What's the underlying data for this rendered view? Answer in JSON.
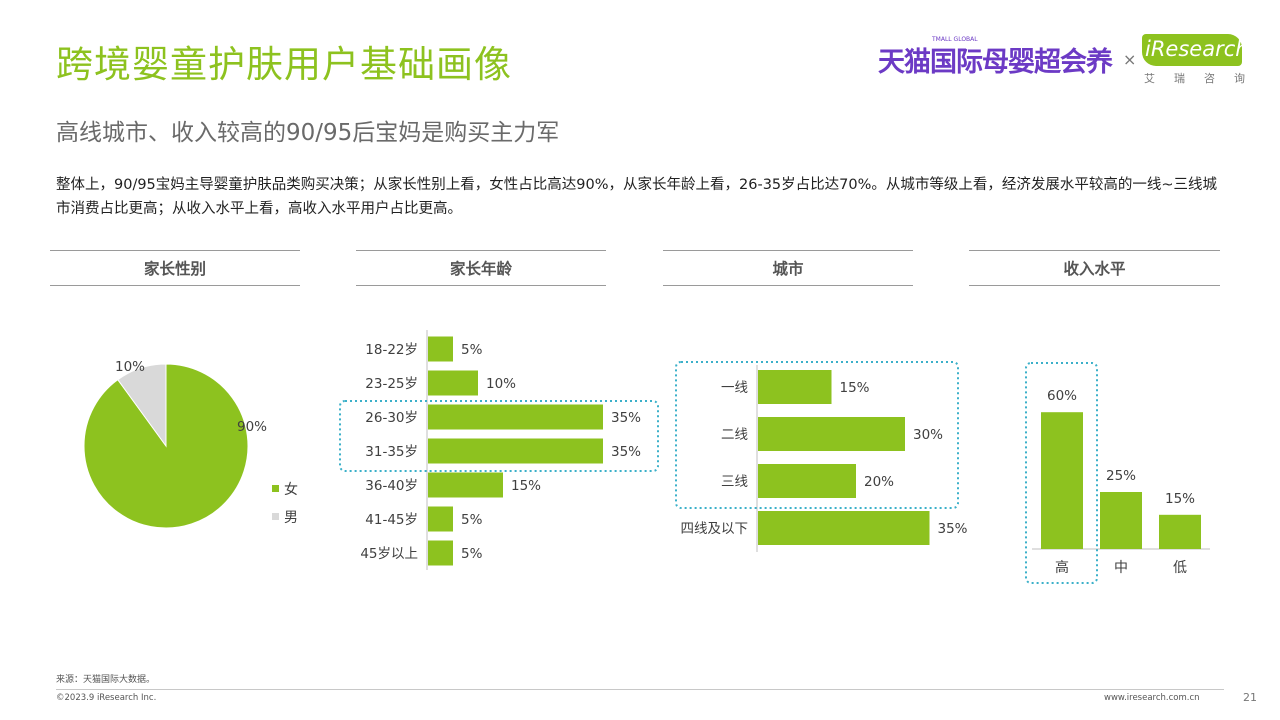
{
  "header": {
    "title": "跨境婴童护肤用户基础画像",
    "subtitle": "高线城市、收入较高的90/95后宝妈是购买主力军",
    "summary": "整体上，90/95宝妈主导婴童护肤品类购买决策；从家长性别上看，女性占比高达90%，从家长年龄上看，26-35岁占比达70%。从城市等级上看，经济发展水平较高的一线~三线城市消费占比更高；从收入水平上看，高收入水平用户占比更高。"
  },
  "logos": {
    "tmall_text": "天猫国际母婴超会养",
    "tmall_small": "TMALL GLOBAL",
    "x_sign": "×",
    "ir_text": "iResearch",
    "ir_cn": "艾瑞咨询"
  },
  "section_headers": [
    "家长性别",
    "家长年龄",
    "城市",
    "收入水平"
  ],
  "colors": {
    "accent": "#8dc21f",
    "grey": "#d9d9d9",
    "highlight_border": "#3bb0c9",
    "brand_purple": "#6c3ac5"
  },
  "chart_data": [
    {
      "type": "pie",
      "title": "家长性别",
      "slices": [
        {
          "label": "女",
          "value": 90,
          "value_label": "90%",
          "color": "#8dc21f"
        },
        {
          "label": "男",
          "value": 10,
          "value_label": "10%",
          "color": "#d9d9d9"
        }
      ],
      "legend_position": "bottom-right"
    },
    {
      "type": "bar",
      "orientation": "horizontal",
      "title": "家长年龄",
      "categories": [
        "18-22岁",
        "23-25岁",
        "26-30岁",
        "31-35岁",
        "36-40岁",
        "41-45岁",
        "45岁以上"
      ],
      "values": [
        5,
        10,
        35,
        35,
        15,
        5,
        5
      ],
      "value_labels": [
        "5%",
        "10%",
        "35%",
        "35%",
        "15%",
        "5%",
        "5%"
      ],
      "highlighted": [
        "26-30岁",
        "31-35岁"
      ]
    },
    {
      "type": "bar",
      "orientation": "horizontal",
      "title": "城市",
      "categories": [
        "一线",
        "二线",
        "三线",
        "四线及以下"
      ],
      "values": [
        15,
        30,
        20,
        35
      ],
      "value_labels": [
        "15%",
        "30%",
        "20%",
        "35%"
      ],
      "highlighted": [
        "一线",
        "二线",
        "三线"
      ]
    },
    {
      "type": "bar",
      "orientation": "vertical",
      "title": "收入水平",
      "categories": [
        "高",
        "中",
        "低"
      ],
      "values": [
        60,
        25,
        15
      ],
      "value_labels": [
        "60%",
        "25%",
        "15%"
      ],
      "highlighted": [
        "高"
      ]
    }
  ],
  "footer": {
    "source": "来源：天猫国际大数据。",
    "copyright": "©2023.9 iResearch Inc.",
    "website": "www.iresearch.com.cn",
    "page": "21"
  }
}
